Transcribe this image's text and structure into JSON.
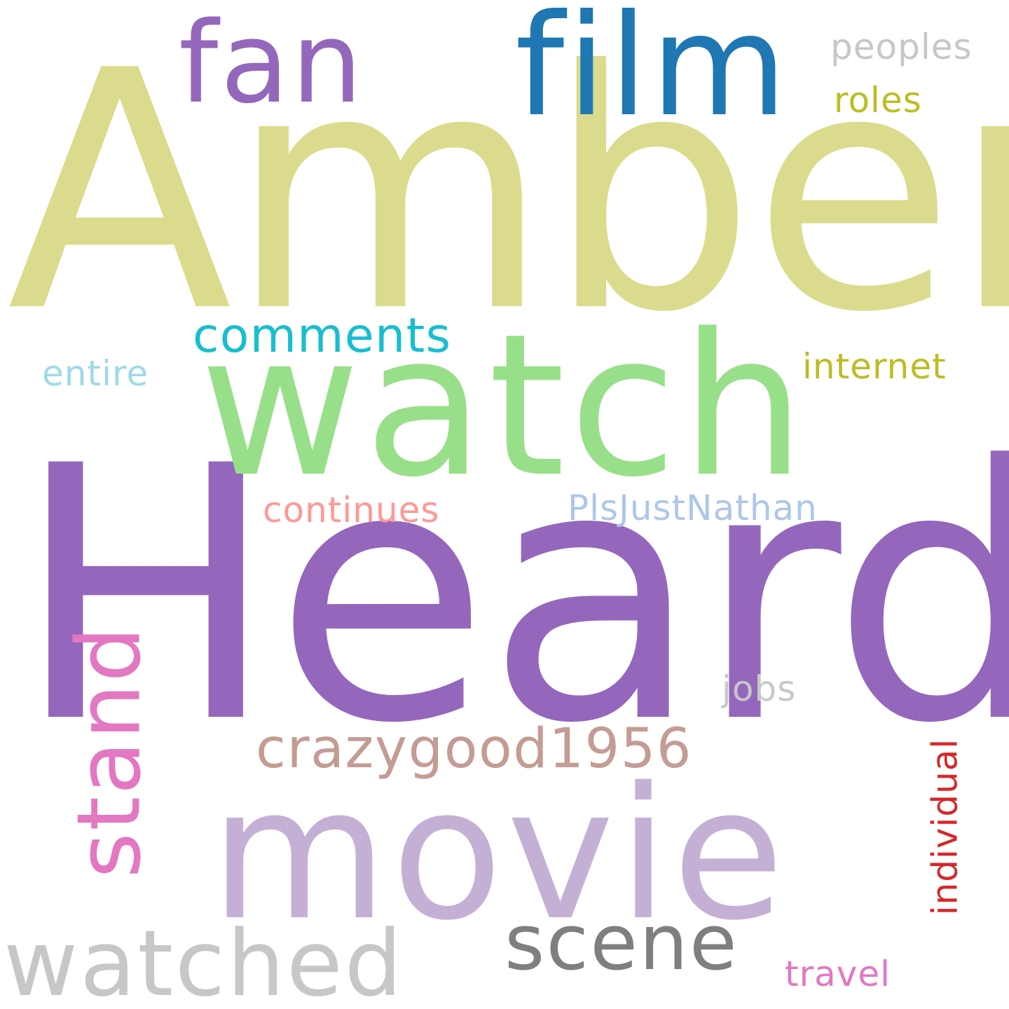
{
  "words": [
    {
      "text": "Amber",
      "color": "#dbdb8d",
      "orientation": "horizontal"
    },
    {
      "text": "Heard",
      "color": "#9467bd",
      "orientation": "horizontal"
    },
    {
      "text": "watch",
      "color": "#98df8a",
      "orientation": "horizontal"
    },
    {
      "text": "movie",
      "color": "#c5b0d5",
      "orientation": "horizontal"
    },
    {
      "text": "film",
      "color": "#1f77b4",
      "orientation": "horizontal"
    },
    {
      "text": "fan",
      "color": "#9467bd",
      "orientation": "horizontal"
    },
    {
      "text": "stand",
      "color": "#e377c2",
      "orientation": "vertical"
    },
    {
      "text": "watched",
      "color": "#c7c7c7",
      "orientation": "horizontal"
    },
    {
      "text": "scene",
      "color": "#7f7f7f",
      "orientation": "horizontal"
    },
    {
      "text": "crazygood1956",
      "color": "#c49c94",
      "orientation": "horizontal"
    },
    {
      "text": "comments",
      "color": "#17becf",
      "orientation": "horizontal"
    },
    {
      "text": "peoples",
      "color": "#c7c7c7",
      "orientation": "horizontal"
    },
    {
      "text": "roles",
      "color": "#bcbd22",
      "orientation": "horizontal"
    },
    {
      "text": "internet",
      "color": "#bcbd22",
      "orientation": "horizontal"
    },
    {
      "text": "entire",
      "color": "#9edae5",
      "orientation": "horizontal"
    },
    {
      "text": "continues",
      "color": "#ff9896",
      "orientation": "horizontal"
    },
    {
      "text": "PlsJustNathan",
      "color": "#aec7e8",
      "orientation": "horizontal"
    },
    {
      "text": "jobs",
      "color": "#c7c7c7",
      "orientation": "horizontal"
    },
    {
      "text": "individual",
      "color": "#d62728",
      "orientation": "vertical"
    },
    {
      "text": "travel",
      "color": "#e377c2",
      "orientation": "horizontal"
    }
  ]
}
